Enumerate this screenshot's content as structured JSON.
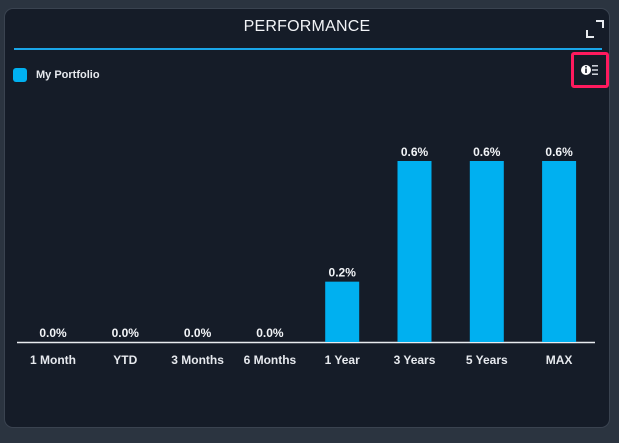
{
  "widget": {
    "title": "PERFORMANCE",
    "expand_icon": "expand-icon",
    "settings_icon": "info-list-icon",
    "highlight_color": "#ff1a5e"
  },
  "legend": {
    "label": "My Portfolio",
    "color": "#00b0f0"
  },
  "chart_data": {
    "type": "bar",
    "categories": [
      "1 Month",
      "YTD",
      "3 Months",
      "6 Months",
      "1 Year",
      "3 Years",
      "5 Years",
      "MAX"
    ],
    "series": [
      {
        "name": "My Portfolio",
        "values": [
          0.0,
          0.0,
          0.0,
          0.0,
          0.2,
          0.6,
          0.6,
          0.6
        ]
      }
    ],
    "data_labels": [
      "0.0%",
      "0.0%",
      "0.0%",
      "0.0%",
      "0.2%",
      "0.6%",
      "0.6%",
      "0.6%"
    ],
    "ylim": [
      0,
      0.6
    ],
    "grid": false,
    "legend_position": "top-left",
    "bar_color": "#00b0f0"
  }
}
